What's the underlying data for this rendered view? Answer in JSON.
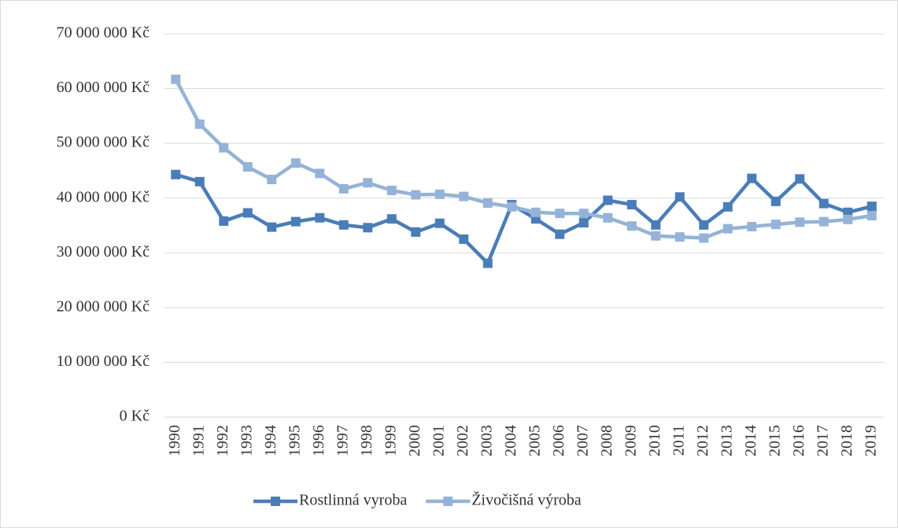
{
  "chart_data": {
    "type": "line",
    "categories": [
      "1990",
      "1991",
      "1992",
      "1993",
      "1994",
      "1995",
      "1996",
      "1997",
      "1998",
      "1999",
      "2000",
      "2001",
      "2002",
      "2003",
      "2004",
      "2005",
      "2006",
      "2007",
      "2008",
      "2009",
      "2010",
      "2011",
      "2012",
      "2013",
      "2014",
      "2015",
      "2016",
      "2017",
      "2018",
      "2019"
    ],
    "series": [
      {
        "name": "Rostlinná vyroba",
        "color": "#4a7db8",
        "values": [
          44300000,
          43000000,
          35800000,
          37300000,
          34700000,
          35700000,
          36400000,
          35100000,
          34600000,
          36200000,
          33800000,
          35400000,
          32500000,
          28100000,
          38800000,
          36200000,
          33400000,
          35500000,
          39600000,
          38800000,
          35100000,
          40200000,
          35100000,
          38400000,
          43600000,
          39400000,
          43500000,
          39000000,
          37400000,
          38500000
        ]
      },
      {
        "name": "Živočišná výroba",
        "color": "#95b3d7",
        "values": [
          61700000,
          53500000,
          49200000,
          45700000,
          43400000,
          46400000,
          44500000,
          41700000,
          42800000,
          41400000,
          40600000,
          40700000,
          40300000,
          39100000,
          38400000,
          37400000,
          37200000,
          37200000,
          36400000,
          34900000,
          33100000,
          32900000,
          32700000,
          34400000,
          34800000,
          35200000,
          35600000,
          35700000,
          36100000,
          36800000
        ]
      }
    ],
    "ylim": [
      0,
      70000000
    ],
    "yticks": [
      {
        "value": 0,
        "label": "0 Kč"
      },
      {
        "value": 10000000,
        "label": "10 000 000 Kč"
      },
      {
        "value": 20000000,
        "label": "20 000 000 Kč"
      },
      {
        "value": 30000000,
        "label": "30 000 000 Kč"
      },
      {
        "value": 40000000,
        "label": "40 000 000 Kč"
      },
      {
        "value": 50000000,
        "label": "50 000 000 Kč"
      },
      {
        "value": 60000000,
        "label": "60 000 000 Kč"
      },
      {
        "value": 70000000,
        "label": "70 000 000 Kč"
      }
    ],
    "grid": true,
    "legend": "bottom"
  }
}
